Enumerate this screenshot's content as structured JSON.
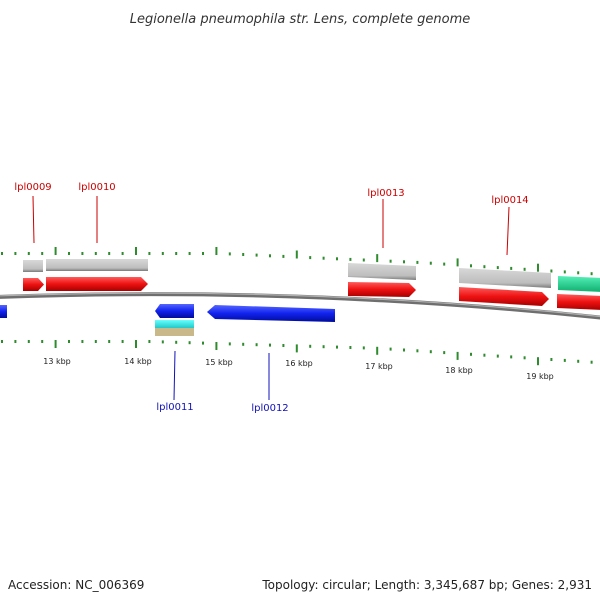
{
  "title": "Legionella pneumophila str. Lens, complete genome",
  "footer": {
    "accession": "Accession: NC_006369",
    "summary": "Topology: circular; Length: 3,345,687 bp; Genes: 2,931"
  },
  "colors": {
    "tick": "#2e8b2e",
    "backbone": "#8a8a8a",
    "forward_cds": "#ee1111",
    "reverse_cds": "#1122ee",
    "gene_grey": "#bdbdbd",
    "cyan": "#33e6e6",
    "teal": "#22dd99",
    "tan": "#c8b88a",
    "forward_label": "#cc0000",
    "reverse_label": "#1111bb"
  },
  "genome_view": {
    "kbp_labels": [
      "13 kbp",
      "14 kbp",
      "15 kbp",
      "16 kbp",
      "17 kbp",
      "18 kbp",
      "19 kbp"
    ],
    "forward_genes": [
      "lpl0009",
      "lpl0010",
      "lpl0013",
      "lpl0014"
    ],
    "reverse_genes": [
      "lpl0011",
      "lpl0012"
    ]
  }
}
